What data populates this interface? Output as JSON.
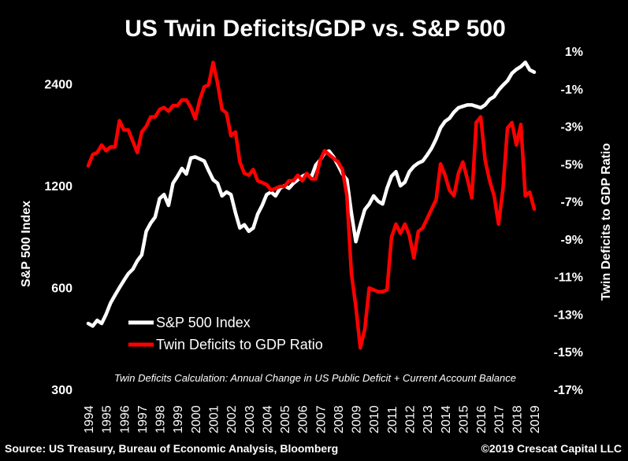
{
  "chart_data": {
    "type": "line",
    "title": "US Twin Deficits/GDP vs. S&P 500",
    "y_left_label": "S&P 500 Index",
    "y_right_label": "Twin Deficits to GDP Ratio",
    "y_left_scale": "log",
    "y_left_ticks": [
      "300",
      "600",
      "1200",
      "2400"
    ],
    "y_left_range": [
      300,
      3000
    ],
    "y_right_ticks": [
      "1%",
      "-1%",
      "-3%",
      "-5%",
      "-7%",
      "-9%",
      "-11%",
      "-13%",
      "-15%",
      "-17%"
    ],
    "y_right_range": [
      -17,
      1
    ],
    "x_ticks": [
      "1994",
      "1995",
      "1996",
      "1997",
      "1998",
      "1999",
      "2000",
      "2001",
      "2002",
      "2003",
      "2004",
      "2005",
      "2006",
      "2007",
      "2008",
      "2009",
      "2010",
      "2011",
      "2012",
      "2013",
      "2014",
      "2015",
      "2016",
      "2017",
      "2018",
      "2019"
    ],
    "legend_position": "lower-left",
    "note": "Twin Deficits Calculation: Annual Change in US Public Deficit + Current Account Balance",
    "series": [
      {
        "name": "S&P 500 Index",
        "color": "#ffffff",
        "axis": "left",
        "x": [
          1994.0,
          1994.25,
          1994.5,
          1994.75,
          1995.0,
          1995.25,
          1995.5,
          1995.75,
          1996.0,
          1996.25,
          1996.5,
          1996.75,
          1997.0,
          1997.25,
          1997.5,
          1997.75,
          1998.0,
          1998.25,
          1998.5,
          1998.75,
          1999.0,
          1999.25,
          1999.5,
          1999.75,
          2000.0,
          2000.25,
          2000.5,
          2000.75,
          2001.0,
          2001.25,
          2001.5,
          2001.75,
          2002.0,
          2002.25,
          2002.5,
          2002.75,
          2003.0,
          2003.25,
          2003.5,
          2003.75,
          2004.0,
          2004.25,
          2004.5,
          2004.75,
          2005.0,
          2005.25,
          2005.5,
          2005.75,
          2006.0,
          2006.25,
          2006.5,
          2006.75,
          2007.0,
          2007.25,
          2007.5,
          2007.75,
          2008.0,
          2008.25,
          2008.5,
          2008.75,
          2009.0,
          2009.25,
          2009.5,
          2009.75,
          2010.0,
          2010.25,
          2010.5,
          2010.75,
          2011.0,
          2011.25,
          2011.5,
          2011.75,
          2012.0,
          2012.25,
          2012.5,
          2012.75,
          2013.0,
          2013.25,
          2013.5,
          2013.75,
          2014.0,
          2014.25,
          2014.5,
          2014.75,
          2015.0,
          2015.25,
          2015.5,
          2015.75,
          2016.0,
          2016.25,
          2016.5,
          2016.75,
          2017.0,
          2017.25,
          2017.5,
          2017.75,
          2018.0,
          2018.25,
          2018.5,
          2018.75,
          2019.0
        ],
        "values": [
          470,
          462,
          480,
          470,
          500,
          540,
          570,
          600,
          630,
          660,
          680,
          720,
          750,
          880,
          930,
          970,
          1100,
          1130,
          1050,
          1220,
          1280,
          1350,
          1300,
          1450,
          1460,
          1440,
          1420,
          1330,
          1250,
          1220,
          1120,
          1150,
          1130,
          1000,
          900,
          920,
          880,
          900,
          990,
          1050,
          1130,
          1150,
          1120,
          1180,
          1200,
          1180,
          1220,
          1250,
          1280,
          1300,
          1270,
          1380,
          1430,
          1500,
          1520,
          1460,
          1380,
          1300,
          1250,
          1000,
          820,
          920,
          1020,
          1060,
          1120,
          1080,
          1060,
          1180,
          1280,
          1320,
          1200,
          1230,
          1320,
          1370,
          1400,
          1420,
          1480,
          1550,
          1650,
          1780,
          1860,
          1900,
          1980,
          2040,
          2060,
          2080,
          2080,
          2060,
          2040,
          2080,
          2160,
          2200,
          2300,
          2380,
          2450,
          2580,
          2650,
          2700,
          2780,
          2640,
          2600
        ]
      },
      {
        "name": "Twin Deficits to GDP Ratio",
        "color": "#ff0000",
        "axis": "right",
        "x": [
          1994.0,
          1994.25,
          1994.5,
          1994.75,
          1995.0,
          1995.25,
          1995.5,
          1995.75,
          1996.0,
          1996.25,
          1996.5,
          1996.75,
          1997.0,
          1997.25,
          1997.5,
          1997.75,
          1998.0,
          1998.25,
          1998.5,
          1998.75,
          1999.0,
          1999.25,
          1999.5,
          1999.75,
          2000.0,
          2000.25,
          2000.5,
          2000.75,
          2001.0,
          2001.25,
          2001.5,
          2001.75,
          2002.0,
          2002.25,
          2002.5,
          2002.75,
          2003.0,
          2003.25,
          2003.5,
          2003.75,
          2004.0,
          2004.25,
          2004.5,
          2004.75,
          2005.0,
          2005.25,
          2005.5,
          2005.75,
          2006.0,
          2006.25,
          2006.5,
          2006.75,
          2007.0,
          2007.25,
          2007.5,
          2007.75,
          2008.0,
          2008.25,
          2008.5,
          2008.75,
          2009.0,
          2009.25,
          2009.5,
          2009.75,
          2010.0,
          2010.25,
          2010.5,
          2010.75,
          2011.0,
          2011.25,
          2011.5,
          2011.75,
          2012.0,
          2012.25,
          2012.5,
          2012.75,
          2013.0,
          2013.25,
          2013.5,
          2013.75,
          2014.0,
          2014.25,
          2014.5,
          2014.75,
          2015.0,
          2015.25,
          2015.5,
          2015.75,
          2016.0,
          2016.25,
          2016.5,
          2016.75,
          2017.0,
          2017.25,
          2017.5,
          2017.75,
          2018.0,
          2018.25,
          2018.5,
          2018.75,
          2019.0
        ],
        "values": [
          -5.1,
          -4.5,
          -4.4,
          -4.0,
          -4.3,
          -4.1,
          -4.1,
          -2.7,
          -3.2,
          -3.2,
          -3.8,
          -4.4,
          -3.3,
          -3.0,
          -2.5,
          -2.5,
          -2.1,
          -2.0,
          -2.2,
          -1.9,
          -1.9,
          -1.6,
          -1.6,
          -2.0,
          -2.6,
          -1.6,
          -0.9,
          -0.8,
          0.4,
          -0.7,
          -2.1,
          -2.3,
          -3.5,
          -3.3,
          -4.9,
          -5.5,
          -5.6,
          -5.3,
          -5.9,
          -6.0,
          -6.1,
          -6.4,
          -6.3,
          -6.2,
          -6.2,
          -5.9,
          -5.9,
          -5.6,
          -5.9,
          -5.5,
          -5.8,
          -5.8,
          -4.8,
          -4.3,
          -4.5,
          -4.7,
          -4.9,
          -5.3,
          -6.7,
          -10.8,
          -12.6,
          -14.8,
          -13.8,
          -11.6,
          -11.7,
          -11.8,
          -11.8,
          -11.7,
          -8.9,
          -8.2,
          -8.7,
          -8.2,
          -8.8,
          -10.0,
          -8.6,
          -8.4,
          -7.9,
          -7.4,
          -6.9,
          -5.0,
          -5.6,
          -6.4,
          -6.7,
          -5.5,
          -4.9,
          -5.8,
          -6.8,
          -2.8,
          -2.5,
          -4.8,
          -5.9,
          -6.7,
          -8.2,
          -6.3,
          -3.1,
          -2.8,
          -4.0,
          -2.9,
          -6.7,
          -6.5,
          -7.4
        ]
      }
    ]
  },
  "footer": {
    "source": "Source: US Treasury, Bureau of Economic Analysis, Bloomberg",
    "copyright": "©2019 Crescat Capital LLC"
  }
}
